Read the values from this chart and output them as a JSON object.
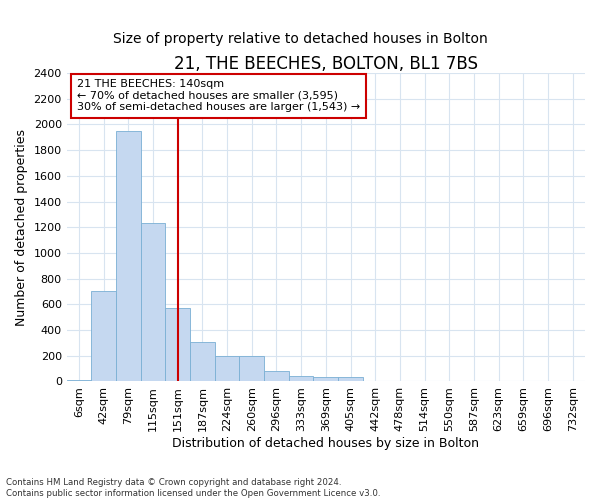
{
  "title": "21, THE BEECHES, BOLTON, BL1 7BS",
  "subtitle": "Size of property relative to detached houses in Bolton",
  "xlabel": "Distribution of detached houses by size in Bolton",
  "ylabel": "Number of detached properties",
  "categories": [
    "6sqm",
    "42sqm",
    "79sqm",
    "115sqm",
    "151sqm",
    "187sqm",
    "224sqm",
    "260sqm",
    "296sqm",
    "333sqm",
    "369sqm",
    "405sqm",
    "442sqm",
    "478sqm",
    "514sqm",
    "550sqm",
    "587sqm",
    "623sqm",
    "659sqm",
    "696sqm",
    "732sqm"
  ],
  "values": [
    15,
    700,
    1950,
    1230,
    575,
    305,
    200,
    200,
    85,
    45,
    38,
    35,
    5,
    5,
    5,
    5,
    5,
    0,
    0,
    0,
    0
  ],
  "bar_color": "#c5d8f0",
  "bar_edgecolor": "#7aafd4",
  "reference_line_x": 4,
  "annotation_label": "21 THE BEECHES: 140sqm",
  "annotation_line1": "← 70% of detached houses are smaller (3,595)",
  "annotation_line2": "30% of semi-detached houses are larger (1,543) →",
  "ylim": [
    0,
    2400
  ],
  "yticks": [
    0,
    200,
    400,
    600,
    800,
    1000,
    1200,
    1400,
    1600,
    1800,
    2000,
    2200,
    2400
  ],
  "footer1": "Contains HM Land Registry data © Crown copyright and database right 2024.",
  "footer2": "Contains public sector information licensed under the Open Government Licence v3.0.",
  "bg_color": "#ffffff",
  "plot_bg_color": "#ffffff",
  "grid_color": "#d8e4f0",
  "title_fontsize": 12,
  "subtitle_fontsize": 10,
  "axis_label_fontsize": 9,
  "tick_fontsize": 8,
  "annotation_box_edgecolor": "#cc0000",
  "reference_line_color": "#cc0000"
}
